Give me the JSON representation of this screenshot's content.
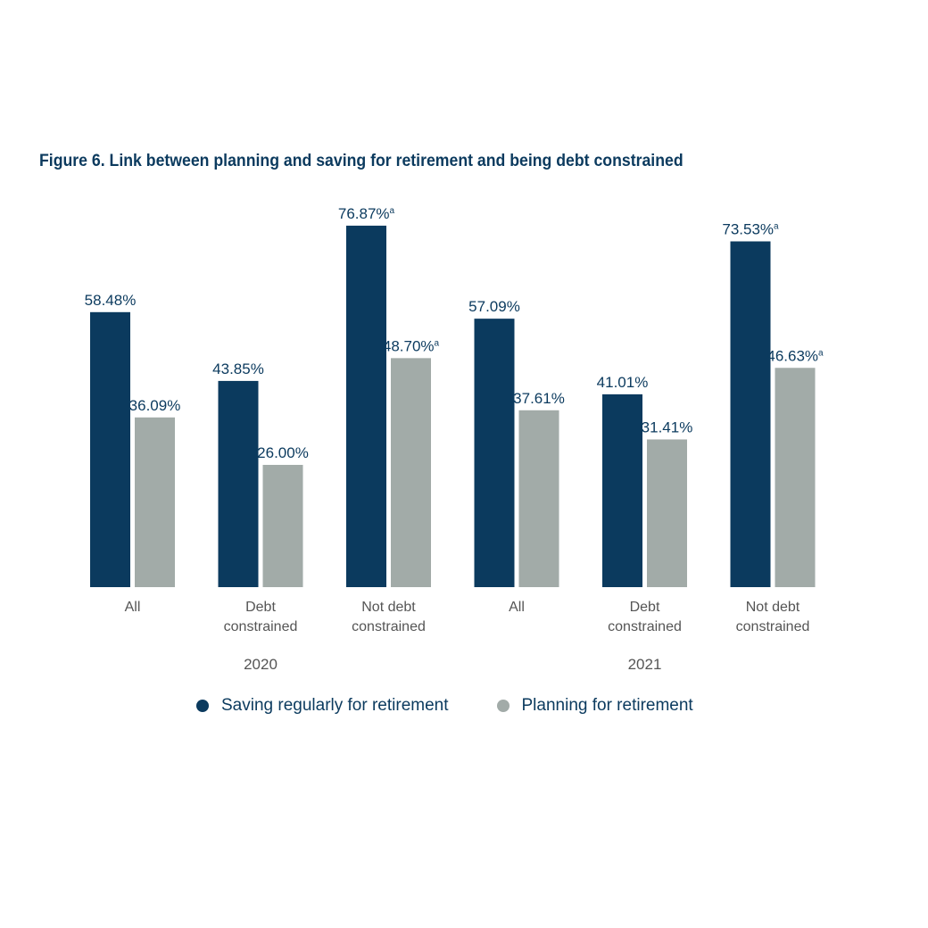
{
  "title": "Figure 6. Link between planning and saving for retirement and being debt constrained",
  "colors": {
    "saving": "#0b3a5e",
    "planning": "#a2aba8"
  },
  "chart_data": {
    "type": "bar",
    "title": "Figure 6. Link between planning and saving for retirement and being debt constrained",
    "ylim": [
      0,
      100
    ],
    "grid": false,
    "legend_position": "bottom",
    "groups": [
      {
        "label": "2020",
        "categories": [
          "All",
          "Debt constrained",
          "Not debt constrained"
        ]
      },
      {
        "label": "2021",
        "categories": [
          "All",
          "Debt constrained",
          "Not debt constrained"
        ]
      }
    ],
    "categories": [
      {
        "line1": "All",
        "line2": ""
      },
      {
        "line1": "Debt",
        "line2": "constrained"
      },
      {
        "line1": "Not debt",
        "line2": "constrained"
      },
      {
        "line1": "All",
        "line2": ""
      },
      {
        "line1": "Debt",
        "line2": "constrained"
      },
      {
        "line1": "Not debt",
        "line2": "constrained"
      }
    ],
    "series": [
      {
        "name": "Saving regularly for retirement",
        "values": [
          58.48,
          43.85,
          76.87,
          57.09,
          41.01,
          73.53
        ],
        "labels": [
          "58.48%",
          "43.85%",
          "76.87%",
          "57.09%",
          "41.01%",
          "73.53%"
        ],
        "superscripts": [
          "",
          "",
          "a",
          "",
          "",
          "a"
        ]
      },
      {
        "name": "Planning for retirement",
        "values": [
          36.09,
          26.0,
          48.7,
          37.61,
          31.41,
          46.63
        ],
        "labels": [
          "36.09%",
          "26.00%",
          "48.70%",
          "37.61%",
          "31.41%",
          "46.63%"
        ],
        "superscripts": [
          "",
          "",
          "a",
          "",
          "",
          "a"
        ]
      }
    ]
  }
}
